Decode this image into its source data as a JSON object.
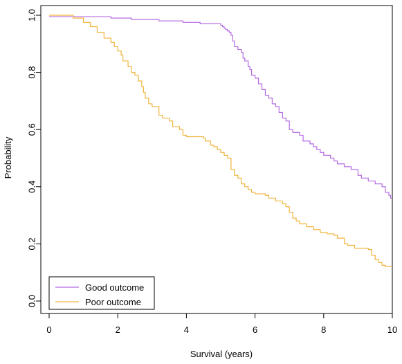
{
  "chart_data": {
    "type": "line",
    "subtype": "step",
    "title": "",
    "xlabel": "Survival (years)",
    "ylabel": "Probability",
    "xlim": [
      0,
      10
    ],
    "ylim": [
      0,
      1
    ],
    "xticks": [
      0,
      2,
      4,
      6,
      8,
      10
    ],
    "yticks": [
      0.0,
      0.2,
      0.4,
      0.6,
      0.8,
      1.0
    ],
    "ytick_labels": [
      "0.0",
      "0.2",
      "0.4",
      "0.6",
      "0.8",
      "1.0"
    ],
    "grid": false,
    "legend_position": "bottom-left",
    "series": [
      {
        "name": "Good outcome",
        "color": "#b36ae2",
        "points": [
          [
            0,
            0.995
          ],
          [
            0.7,
            0.995
          ],
          [
            1.8,
            0.99
          ],
          [
            2.4,
            0.985
          ],
          [
            3.2,
            0.98
          ],
          [
            3.9,
            0.975
          ],
          [
            4.4,
            0.97
          ],
          [
            5.0,
            0.965
          ],
          [
            5.05,
            0.96
          ],
          [
            5.1,
            0.955
          ],
          [
            5.15,
            0.95
          ],
          [
            5.2,
            0.945
          ],
          [
            5.25,
            0.94
          ],
          [
            5.3,
            0.93
          ],
          [
            5.35,
            0.91
          ],
          [
            5.4,
            0.89
          ],
          [
            5.5,
            0.88
          ],
          [
            5.6,
            0.87
          ],
          [
            5.65,
            0.85
          ],
          [
            5.7,
            0.84
          ],
          [
            5.8,
            0.82
          ],
          [
            5.85,
            0.81
          ],
          [
            5.9,
            0.79
          ],
          [
            6.0,
            0.78
          ],
          [
            6.1,
            0.76
          ],
          [
            6.2,
            0.74
          ],
          [
            6.3,
            0.72
          ],
          [
            6.4,
            0.71
          ],
          [
            6.5,
            0.69
          ],
          [
            6.6,
            0.68
          ],
          [
            6.7,
            0.66
          ],
          [
            6.8,
            0.64
          ],
          [
            6.9,
            0.63
          ],
          [
            7.0,
            0.6
          ],
          [
            7.1,
            0.59
          ],
          [
            7.3,
            0.58
          ],
          [
            7.4,
            0.56
          ],
          [
            7.6,
            0.55
          ],
          [
            7.7,
            0.54
          ],
          [
            7.8,
            0.53
          ],
          [
            7.9,
            0.52
          ],
          [
            8.0,
            0.51
          ],
          [
            8.2,
            0.5
          ],
          [
            8.3,
            0.49
          ],
          [
            8.4,
            0.48
          ],
          [
            8.6,
            0.47
          ],
          [
            8.8,
            0.46
          ],
          [
            9.0,
            0.44
          ],
          [
            9.1,
            0.43
          ],
          [
            9.3,
            0.42
          ],
          [
            9.5,
            0.41
          ],
          [
            9.7,
            0.4
          ],
          [
            9.8,
            0.38
          ],
          [
            9.9,
            0.37
          ],
          [
            9.95,
            0.36
          ],
          [
            10,
            0.36
          ]
        ]
      },
      {
        "name": "Poor outcome",
        "color": "#f0b43c",
        "points": [
          [
            0,
            1.0
          ],
          [
            0.7,
            0.99
          ],
          [
            1.0,
            0.975
          ],
          [
            1.2,
            0.96
          ],
          [
            1.4,
            0.94
          ],
          [
            1.6,
            0.92
          ],
          [
            1.8,
            0.905
          ],
          [
            1.9,
            0.89
          ],
          [
            2.0,
            0.875
          ],
          [
            2.1,
            0.86
          ],
          [
            2.15,
            0.84
          ],
          [
            2.3,
            0.82
          ],
          [
            2.4,
            0.8
          ],
          [
            2.5,
            0.79
          ],
          [
            2.6,
            0.77
          ],
          [
            2.7,
            0.75
          ],
          [
            2.75,
            0.73
          ],
          [
            2.8,
            0.71
          ],
          [
            2.9,
            0.69
          ],
          [
            3.0,
            0.68
          ],
          [
            3.2,
            0.65
          ],
          [
            3.3,
            0.64
          ],
          [
            3.5,
            0.63
          ],
          [
            3.6,
            0.61
          ],
          [
            3.8,
            0.6
          ],
          [
            3.9,
            0.58
          ],
          [
            4.0,
            0.575
          ],
          [
            4.4,
            0.575
          ],
          [
            4.5,
            0.57
          ],
          [
            4.55,
            0.56
          ],
          [
            4.7,
            0.545
          ],
          [
            4.8,
            0.54
          ],
          [
            4.9,
            0.53
          ],
          [
            5.0,
            0.52
          ],
          [
            5.1,
            0.51
          ],
          [
            5.2,
            0.5
          ],
          [
            5.3,
            0.46
          ],
          [
            5.4,
            0.44
          ],
          [
            5.5,
            0.43
          ],
          [
            5.6,
            0.41
          ],
          [
            5.7,
            0.4
          ],
          [
            5.8,
            0.39
          ],
          [
            5.9,
            0.38
          ],
          [
            6.0,
            0.375
          ],
          [
            6.3,
            0.37
          ],
          [
            6.4,
            0.36
          ],
          [
            6.6,
            0.35
          ],
          [
            6.8,
            0.34
          ],
          [
            6.9,
            0.33
          ],
          [
            7.0,
            0.31
          ],
          [
            7.1,
            0.29
          ],
          [
            7.2,
            0.28
          ],
          [
            7.3,
            0.27
          ],
          [
            7.5,
            0.26
          ],
          [
            7.7,
            0.25
          ],
          [
            7.9,
            0.24
          ],
          [
            8.1,
            0.235
          ],
          [
            8.3,
            0.23
          ],
          [
            8.4,
            0.22
          ],
          [
            8.6,
            0.2
          ],
          [
            8.7,
            0.195
          ],
          [
            8.9,
            0.185
          ],
          [
            9.3,
            0.18
          ],
          [
            9.4,
            0.16
          ],
          [
            9.5,
            0.145
          ],
          [
            9.6,
            0.135
          ],
          [
            9.7,
            0.125
          ],
          [
            9.8,
            0.12
          ],
          [
            10,
            0.12
          ]
        ]
      }
    ]
  }
}
